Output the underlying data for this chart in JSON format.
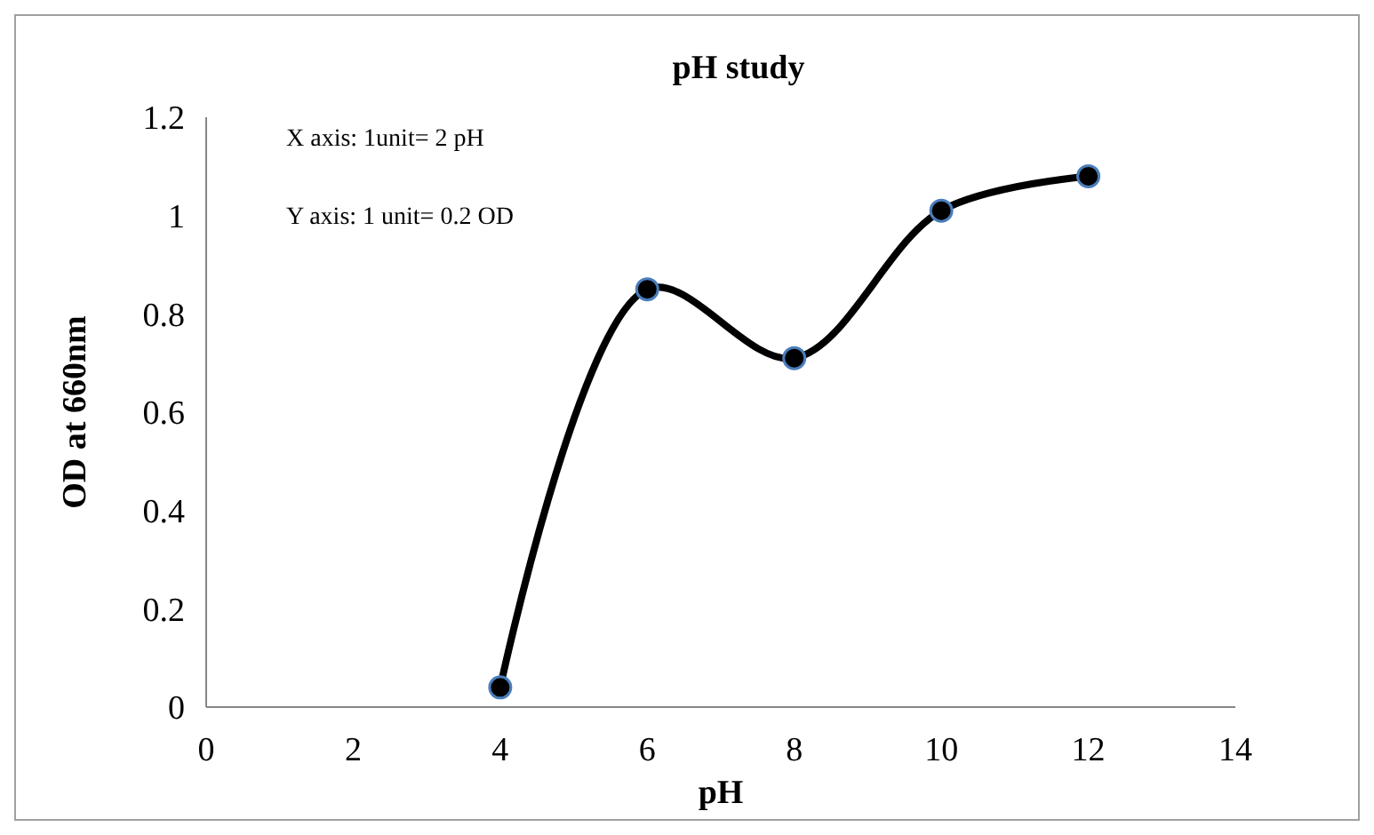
{
  "chart_data": {
    "type": "line",
    "title": "pH study",
    "xlabel": "pH",
    "ylabel": "OD at 660nm",
    "x": [
      4,
      6,
      8,
      10,
      12
    ],
    "series": [
      {
        "color": "#000000",
        "values": [
          0.04,
          0.85,
          0.71,
          1.01,
          1.08
        ]
      }
    ],
    "xlim": [
      0,
      14
    ],
    "xticks": [
      0,
      2,
      4,
      6,
      8,
      10,
      12,
      14
    ],
    "ylim": [
      0,
      1.2
    ],
    "yticks": [
      0,
      0.2,
      0.4,
      0.6,
      0.8,
      1,
      1.2
    ],
    "grid": false,
    "marker": "circle",
    "line_style": "solid",
    "annotations": [
      "X axis: 1unit= 2 pH",
      "Y axis: 1 unit= 0.2 OD"
    ]
  }
}
